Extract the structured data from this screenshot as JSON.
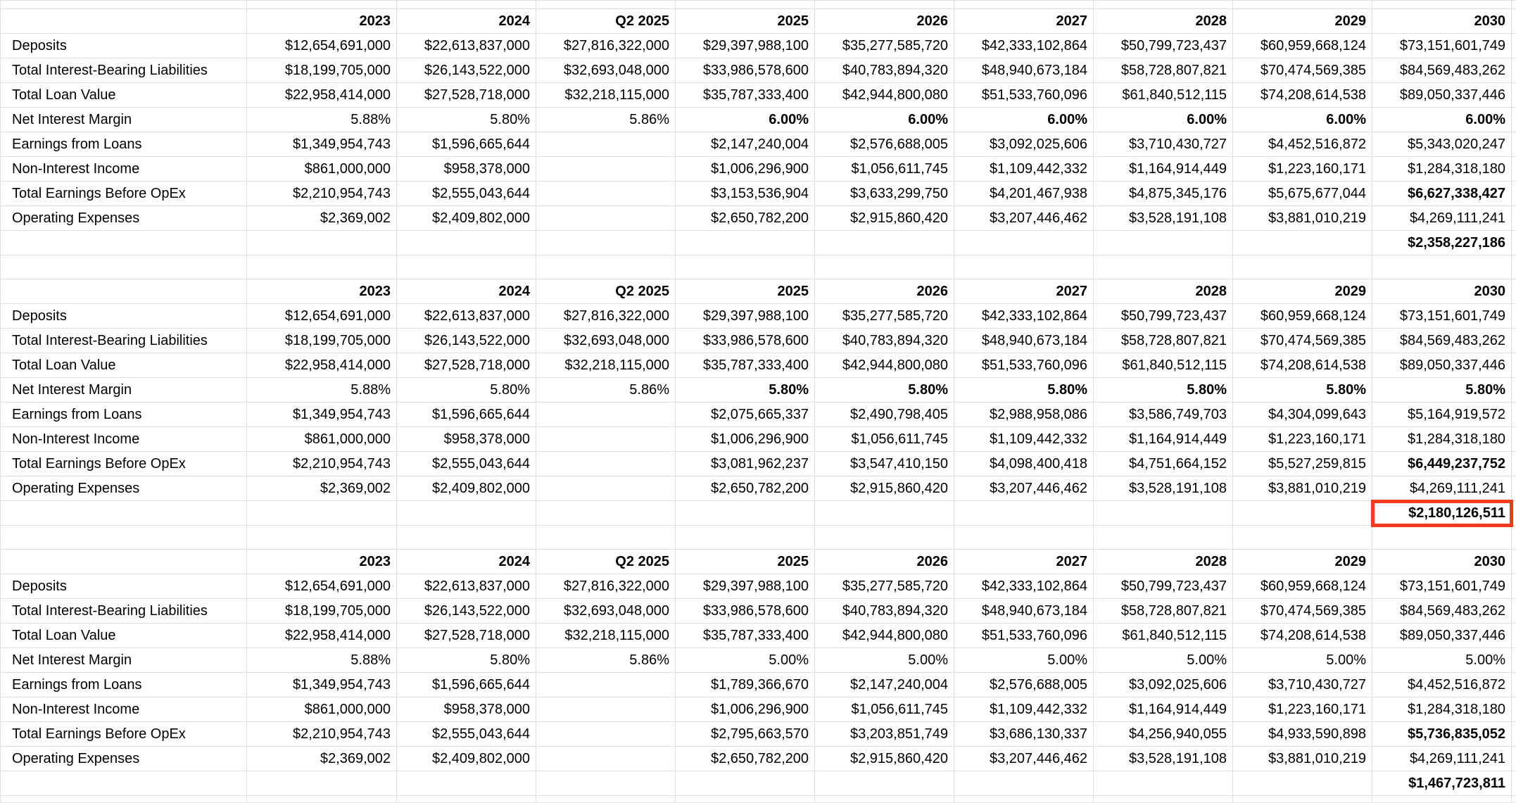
{
  "colors": {
    "highlight_border": "#f53b1d",
    "gridline": "#e0e0e0",
    "text": "#000000",
    "background": "#ffffff"
  },
  "sheet": {
    "columns": [
      "2023",
      "2024",
      "Q2 2025",
      "2025",
      "2026",
      "2027",
      "2028",
      "2029",
      "2030"
    ],
    "tables": [
      {
        "nim_projection_bold": true,
        "rows": [
          {
            "label": "Deposits",
            "values": [
              "$12,654,691,000",
              "$22,613,837,000",
              "$27,816,322,000",
              "$29,397,988,100",
              "$35,277,585,720",
              "$42,333,102,864",
              "$50,799,723,437",
              "$60,959,668,124",
              "$73,151,601,749"
            ]
          },
          {
            "label": "Total Interest-Bearing Liabilities",
            "values": [
              "$18,199,705,000",
              "$26,143,522,000",
              "$32,693,048,000",
              "$33,986,578,600",
              "$40,783,894,320",
              "$48,940,673,184",
              "$58,728,807,821",
              "$70,474,569,385",
              "$84,569,483,262"
            ]
          },
          {
            "label": "Total Loan Value",
            "values": [
              "$22,958,414,000",
              "$27,528,718,000",
              "$32,218,115,000",
              "$35,787,333,400",
              "$42,944,800,080",
              "$51,533,760,096",
              "$61,840,512,115",
              "$74,208,614,538",
              "$89,050,337,446"
            ]
          },
          {
            "label": "Net Interest Margin",
            "values": [
              "5.88%",
              "5.80%",
              "5.86%",
              "6.00%",
              "6.00%",
              "6.00%",
              "6.00%",
              "6.00%",
              "6.00%"
            ]
          },
          {
            "label": "Earnings from Loans",
            "values": [
              "$1,349,954,743",
              "$1,596,665,644",
              "",
              "$2,147,240,004",
              "$2,576,688,005",
              "$3,092,025,606",
              "$3,710,430,727",
              "$4,452,516,872",
              "$5,343,020,247"
            ]
          },
          {
            "label": "Non-Interest Income",
            "values": [
              "$861,000,000",
              "$958,378,000",
              "",
              "$1,006,296,900",
              "$1,056,611,745",
              "$1,109,442,332",
              "$1,164,914,449",
              "$1,223,160,171",
              "$1,284,318,180"
            ]
          },
          {
            "label": "Total Earnings Before OpEx",
            "values": [
              "$2,210,954,743",
              "$2,555,043,644",
              "",
              "$3,153,536,904",
              "$3,633,299,750",
              "$4,201,467,938",
              "$4,875,345,176",
              "$5,675,677,044",
              "$6,627,338,427"
            ]
          },
          {
            "label": "Operating Expenses",
            "values": [
              "$2,369,002",
              "$2,409,802,000",
              "",
              "$2,650,782,200",
              "$2,915,860,420",
              "$3,207,446,462",
              "$3,528,191,108",
              "$3,881,010,219",
              "$4,269,111,241"
            ]
          }
        ],
        "total": {
          "value": "$2,358,227,186",
          "highlighted": false
        }
      },
      {
        "nim_projection_bold": true,
        "rows": [
          {
            "label": "Deposits",
            "values": [
              "$12,654,691,000",
              "$22,613,837,000",
              "$27,816,322,000",
              "$29,397,988,100",
              "$35,277,585,720",
              "$42,333,102,864",
              "$50,799,723,437",
              "$60,959,668,124",
              "$73,151,601,749"
            ]
          },
          {
            "label": "Total Interest-Bearing Liabilities",
            "values": [
              "$18,199,705,000",
              "$26,143,522,000",
              "$32,693,048,000",
              "$33,986,578,600",
              "$40,783,894,320",
              "$48,940,673,184",
              "$58,728,807,821",
              "$70,474,569,385",
              "$84,569,483,262"
            ]
          },
          {
            "label": "Total Loan Value",
            "values": [
              "$22,958,414,000",
              "$27,528,718,000",
              "$32,218,115,000",
              "$35,787,333,400",
              "$42,944,800,080",
              "$51,533,760,096",
              "$61,840,512,115",
              "$74,208,614,538",
              "$89,050,337,446"
            ]
          },
          {
            "label": "Net Interest Margin",
            "values": [
              "5.88%",
              "5.80%",
              "5.86%",
              "5.80%",
              "5.80%",
              "5.80%",
              "5.80%",
              "5.80%",
              "5.80%"
            ]
          },
          {
            "label": "Earnings from Loans",
            "values": [
              "$1,349,954,743",
              "$1,596,665,644",
              "",
              "$2,075,665,337",
              "$2,490,798,405",
              "$2,988,958,086",
              "$3,586,749,703",
              "$4,304,099,643",
              "$5,164,919,572"
            ]
          },
          {
            "label": "Non-Interest Income",
            "values": [
              "$861,000,000",
              "$958,378,000",
              "",
              "$1,006,296,900",
              "$1,056,611,745",
              "$1,109,442,332",
              "$1,164,914,449",
              "$1,223,160,171",
              "$1,284,318,180"
            ]
          },
          {
            "label": "Total Earnings Before OpEx",
            "values": [
              "$2,210,954,743",
              "$2,555,043,644",
              "",
              "$3,081,962,237",
              "$3,547,410,150",
              "$4,098,400,418",
              "$4,751,664,152",
              "$5,527,259,815",
              "$6,449,237,752"
            ]
          },
          {
            "label": "Operating Expenses",
            "values": [
              "$2,369,002",
              "$2,409,802,000",
              "",
              "$2,650,782,200",
              "$2,915,860,420",
              "$3,207,446,462",
              "$3,528,191,108",
              "$3,881,010,219",
              "$4,269,111,241"
            ]
          }
        ],
        "total": {
          "value": "$2,180,126,511",
          "highlighted": true
        }
      },
      {
        "nim_projection_bold": false,
        "rows": [
          {
            "label": "Deposits",
            "values": [
              "$12,654,691,000",
              "$22,613,837,000",
              "$27,816,322,000",
              "$29,397,988,100",
              "$35,277,585,720",
              "$42,333,102,864",
              "$50,799,723,437",
              "$60,959,668,124",
              "$73,151,601,749"
            ]
          },
          {
            "label": "Total Interest-Bearing Liabilities",
            "values": [
              "$18,199,705,000",
              "$26,143,522,000",
              "$32,693,048,000",
              "$33,986,578,600",
              "$40,783,894,320",
              "$48,940,673,184",
              "$58,728,807,821",
              "$70,474,569,385",
              "$84,569,483,262"
            ]
          },
          {
            "label": "Total Loan Value",
            "values": [
              "$22,958,414,000",
              "$27,528,718,000",
              "$32,218,115,000",
              "$35,787,333,400",
              "$42,944,800,080",
              "$51,533,760,096",
              "$61,840,512,115",
              "$74,208,614,538",
              "$89,050,337,446"
            ]
          },
          {
            "label": "Net Interest Margin",
            "values": [
              "5.88%",
              "5.80%",
              "5.86%",
              "5.00%",
              "5.00%",
              "5.00%",
              "5.00%",
              "5.00%",
              "5.00%"
            ]
          },
          {
            "label": "Earnings from Loans",
            "values": [
              "$1,349,954,743",
              "$1,596,665,644",
              "",
              "$1,789,366,670",
              "$2,147,240,004",
              "$2,576,688,005",
              "$3,092,025,606",
              "$3,710,430,727",
              "$4,452,516,872"
            ]
          },
          {
            "label": "Non-Interest Income",
            "values": [
              "$861,000,000",
              "$958,378,000",
              "",
              "$1,006,296,900",
              "$1,056,611,745",
              "$1,109,442,332",
              "$1,164,914,449",
              "$1,223,160,171",
              "$1,284,318,180"
            ]
          },
          {
            "label": "Total Earnings Before OpEx",
            "values": [
              "$2,210,954,743",
              "$2,555,043,644",
              "",
              "$2,795,663,570",
              "$3,203,851,749",
              "$3,686,130,337",
              "$4,256,940,055",
              "$4,933,590,898",
              "$5,736,835,052"
            ]
          },
          {
            "label": "Operating Expenses",
            "values": [
              "$2,369,002",
              "$2,409,802,000",
              "",
              "$2,650,782,200",
              "$2,915,860,420",
              "$3,207,446,462",
              "$3,528,191,108",
              "$3,881,010,219",
              "$4,269,111,241"
            ]
          }
        ],
        "total": {
          "value": "$1,467,723,811",
          "highlighted": false
        }
      }
    ]
  }
}
